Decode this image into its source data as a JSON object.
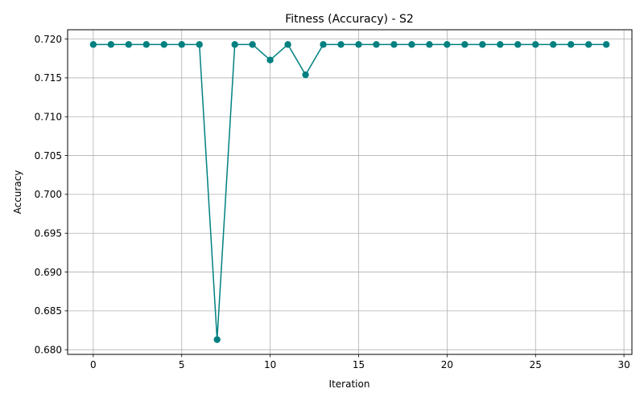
{
  "chart_data": {
    "type": "line",
    "title": "Fitness (Accuracy) - S2",
    "xlabel": "Iteration",
    "ylabel": "Accuracy",
    "xlim": [
      -1.45,
      30.45
    ],
    "ylim": [
      0.6794,
      0.7212
    ],
    "grid": true,
    "color": "#008080",
    "marker": "circle",
    "xticks": [
      {
        "value": 0,
        "label": "0"
      },
      {
        "value": 5,
        "label": "5"
      },
      {
        "value": 10,
        "label": "10"
      },
      {
        "value": 15,
        "label": "15"
      },
      {
        "value": 20,
        "label": "20"
      },
      {
        "value": 25,
        "label": "25"
      },
      {
        "value": 30,
        "label": "30"
      }
    ],
    "yticks": [
      {
        "value": 0.68,
        "label": "0.680"
      },
      {
        "value": 0.685,
        "label": "0.685"
      },
      {
        "value": 0.69,
        "label": "0.690"
      },
      {
        "value": 0.695,
        "label": "0.695"
      },
      {
        "value": 0.7,
        "label": "0.700"
      },
      {
        "value": 0.705,
        "label": "0.705"
      },
      {
        "value": 0.71,
        "label": "0.710"
      },
      {
        "value": 0.715,
        "label": "0.715"
      },
      {
        "value": 0.72,
        "label": "0.720"
      }
    ],
    "x": [
      0,
      1,
      2,
      3,
      4,
      5,
      6,
      7,
      8,
      9,
      10,
      11,
      12,
      13,
      14,
      15,
      16,
      17,
      18,
      19,
      20,
      21,
      22,
      23,
      24,
      25,
      26,
      27,
      28,
      29
    ],
    "y": [
      0.7193,
      0.7193,
      0.7193,
      0.7193,
      0.7193,
      0.7193,
      0.7193,
      0.6813,
      0.7193,
      0.7193,
      0.7173,
      0.7193,
      0.7154,
      0.7193,
      0.7193,
      0.7193,
      0.7193,
      0.7193,
      0.7193,
      0.7193,
      0.7193,
      0.7193,
      0.7193,
      0.7193,
      0.7193,
      0.7193,
      0.7193,
      0.7193,
      0.7193,
      0.7193
    ]
  }
}
